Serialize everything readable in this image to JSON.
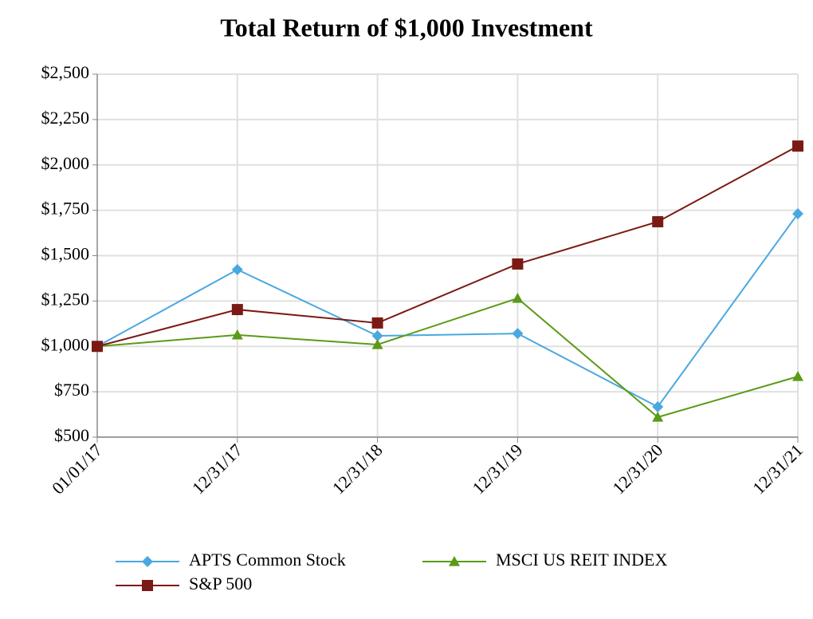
{
  "chart_data": {
    "type": "line",
    "title": "Total Return of $1,000 Investment",
    "categories": [
      "01/01/17",
      "12/31/17",
      "12/31/18",
      "12/31/19",
      "12/31/20",
      "12/31/21"
    ],
    "series": [
      {
        "name": "APTS Common Stock",
        "color": "#4aa8e0",
        "marker": "diamond",
        "values": [
          1000,
          1423,
          1058,
          1071,
          667,
          1731
        ]
      },
      {
        "name": "MSCI US REIT INDEX",
        "color": "#5b9a17",
        "marker": "triangle",
        "values": [
          1000,
          1063,
          1010,
          1265,
          610,
          834
        ]
      },
      {
        "name": "S&P 500",
        "color": "#7b1a14",
        "marker": "square",
        "values": [
          1000,
          1203,
          1129,
          1454,
          1687,
          2104
        ]
      }
    ],
    "ylim": [
      500,
      2500
    ],
    "yticks": [
      {
        "value": 500,
        "label": "$500"
      },
      {
        "value": 750,
        "label": "$750"
      },
      {
        "value": 1000,
        "label": "$1,000"
      },
      {
        "value": 1250,
        "label": "$1,250"
      },
      {
        "value": 1500,
        "label": "$1,500"
      },
      {
        "value": 1750,
        "label": "$1,750"
      },
      {
        "value": 2000,
        "label": "$2,000"
      },
      {
        "value": 2250,
        "label": "$2,250"
      },
      {
        "value": 2500,
        "label": "$2,500"
      }
    ],
    "grid": true
  }
}
